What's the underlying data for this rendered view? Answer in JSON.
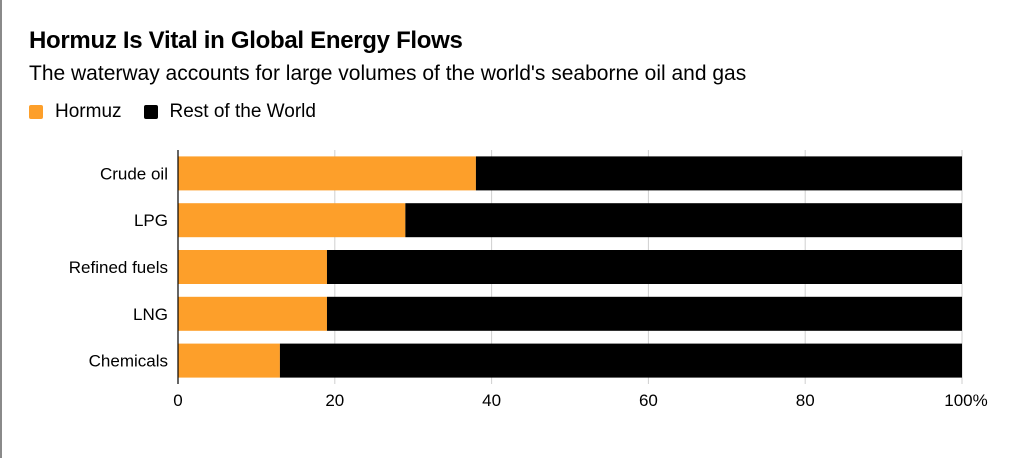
{
  "chart_data": {
    "type": "bar",
    "orientation": "horizontal",
    "stacked": true,
    "title": "Hormuz Is Vital in Global Energy Flows",
    "subtitle": "The waterway accounts for large volumes of the world's seaborne oil and gas",
    "categories": [
      "Crude oil",
      "LPG",
      "Refined fuels",
      "LNG",
      "Chemicals"
    ],
    "series": [
      {
        "name": "Hormuz",
        "color": "#fd9f2a",
        "values": [
          38,
          29,
          19,
          19,
          13
        ]
      },
      {
        "name": "Rest of the World",
        "color": "#000000",
        "values": [
          62,
          71,
          81,
          81,
          87
        ]
      }
    ],
    "xlim": [
      0,
      100
    ],
    "xticks": [
      0,
      20,
      40,
      60,
      80,
      100
    ],
    "xtick_labels": [
      "0",
      "20",
      "40",
      "60",
      "80",
      "100%"
    ],
    "xlabel": "",
    "ylabel": "",
    "grid": true,
    "legend_position": "top-left"
  }
}
